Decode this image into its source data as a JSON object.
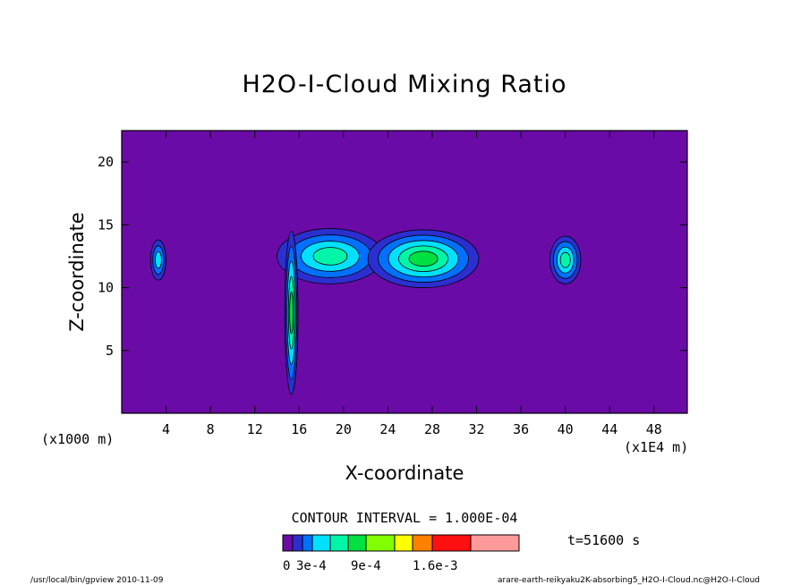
{
  "chart_data": {
    "type": "heatmap",
    "title": "H2O-I-Cloud Mixing Ratio",
    "xlabel": "X-coordinate",
    "ylabel": "Z-coordinate",
    "x_unit_left": "(x1000 m)",
    "x_unit_right": "(x1E4 m)",
    "xticks": [
      "4",
      "8",
      "12",
      "16",
      "20",
      "24",
      "28",
      "32",
      "36",
      "40",
      "44",
      "48"
    ],
    "yticks": [
      "5",
      "10",
      "15",
      "20"
    ],
    "xlim": [
      0,
      51
    ],
    "ylim": [
      0,
      22.5
    ],
    "contour_interval_text": "CONTOUR INTERVAL = 1.000E-04",
    "time_label": "t=51600 s",
    "legend_labels": [
      "0",
      "3e-4",
      "9e-4",
      "1.6e-3"
    ],
    "colorbar": [
      "#6a0ba8",
      "#2c2fd0",
      "#0070ff",
      "#00e0ff",
      "#00f5a8",
      "#00e040",
      "#80ff00",
      "#ffff00",
      "#ff8000",
      "#ff1010",
      "#ff9a9a"
    ],
    "background_color": "#6a0ba8",
    "clouds": [
      {
        "x": 3.3,
        "z": 12.2,
        "rx": 0.7,
        "rz": 1.6,
        "levels": 3
      },
      {
        "x": 18.8,
        "z": 12.5,
        "rx": 4.8,
        "rz": 2.2,
        "levels": 4
      },
      {
        "x": 27.2,
        "z": 12.3,
        "rx": 5.0,
        "rz": 2.3,
        "levels": 5
      },
      {
        "x": 40.0,
        "z": 12.2,
        "rx": 1.4,
        "rz": 1.9,
        "levels": 4
      },
      {
        "x": 15.3,
        "z": 8.0,
        "rx": 0.6,
        "rz": 6.5,
        "levels": 5
      }
    ],
    "footer_left": "/usr/local/bin/gpview  2010-11-09",
    "footer_right": "arare-earth-reikyaku2K-absorbing5_H2O-I-Cloud.nc@H2O-I-Cloud"
  }
}
